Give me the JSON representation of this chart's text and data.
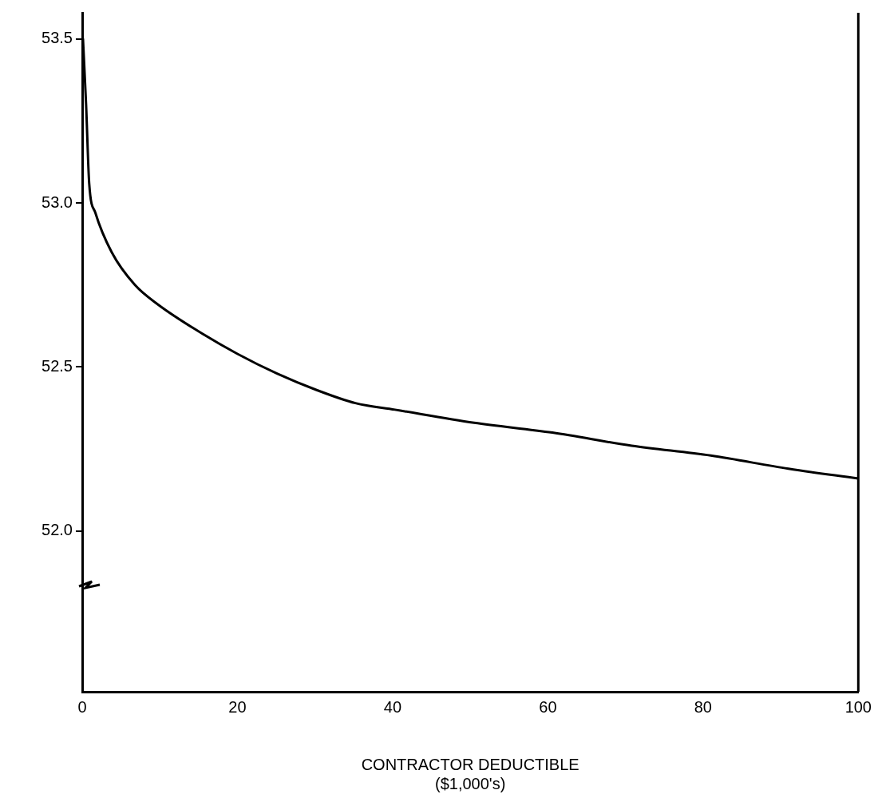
{
  "chart_data": {
    "type": "line",
    "xlabel": "CONTRACTOR DEDUCTIBLE\n($1,000's)",
    "x": [
      0.1,
      0.5,
      0.9,
      1.7,
      3.8,
      6.8,
      9.8,
      14.9,
      20,
      25.1,
      30.2,
      35.2,
      40.3,
      50.5,
      60.6,
      70.8,
      81,
      91,
      100
    ],
    "series": [
      {
        "color": "#000000",
        "values": [
          53.5,
          53.3,
          53.06,
          52.97,
          52.85,
          52.75,
          52.69,
          52.61,
          52.54,
          52.48,
          52.43,
          52.39,
          52.37,
          52.33,
          52.3,
          52.26,
          52.23,
          52.19,
          52.16
        ]
      }
    ],
    "xlim": [
      0,
      100
    ],
    "xticks": [
      0,
      20,
      40,
      60,
      80,
      100
    ],
    "ylim": [
      51.51,
      53.58
    ],
    "yticks": [
      {
        "value": 53.5,
        "label": "53.5"
      },
      {
        "value": 53.0,
        "label": "53.0"
      },
      {
        "value": 52.5,
        "label": "52.5"
      },
      {
        "value": 52.0,
        "label": "52.0"
      }
    ],
    "grid": false,
    "legend": false,
    "marker": "none",
    "line_style": "solid"
  }
}
